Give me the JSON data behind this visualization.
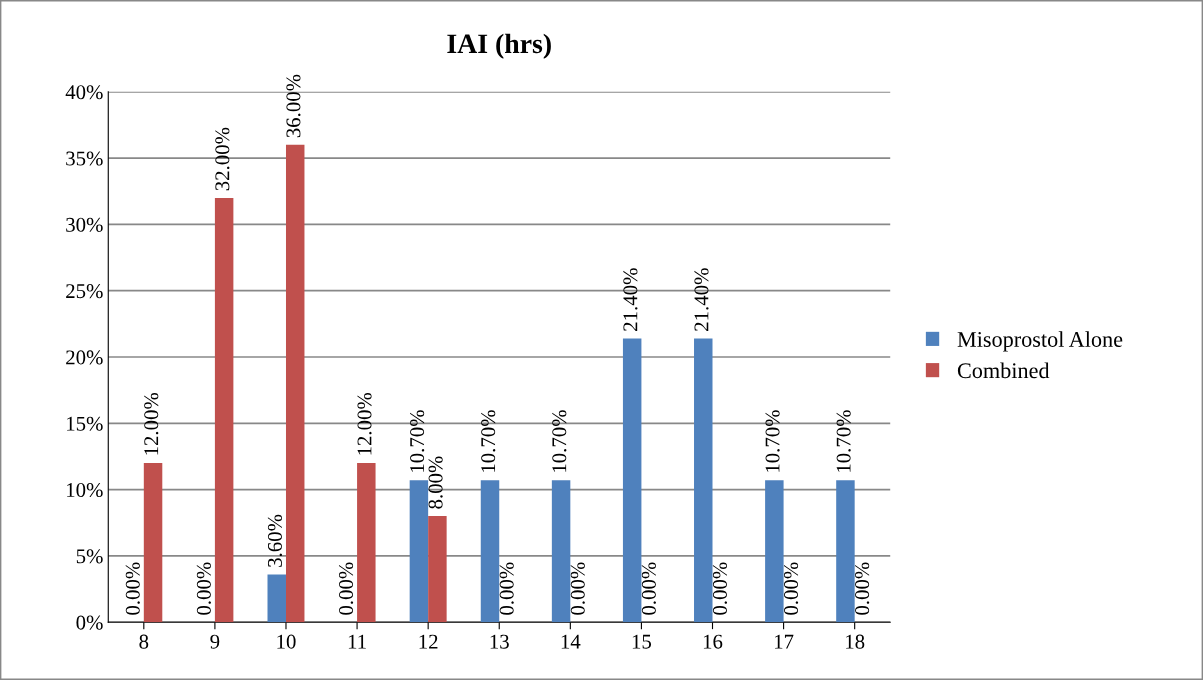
{
  "chart_data": {
    "type": "bar",
    "title": "IAI (hrs)",
    "categories": [
      "8",
      "9",
      "10",
      "11",
      "12",
      "13",
      "14",
      "15",
      "16",
      "17",
      "18"
    ],
    "series": [
      {
        "name": "Misoprostol Alone",
        "color": "#4f81bd",
        "values": [
          0,
          0,
          3.6,
          0,
          10.7,
          10.7,
          10.7,
          21.4,
          21.4,
          10.7,
          10.7
        ],
        "value_labels": [
          "0.00%",
          "0.00%",
          "3.60%",
          "0.00%",
          "10.70%",
          "10.70%",
          "10.70%",
          "21.40%",
          "21.40%",
          "10.70%",
          "10.70%"
        ]
      },
      {
        "name": "Combined",
        "color": "#c0504d",
        "values": [
          12,
          32,
          36,
          12,
          8,
          0,
          0,
          0,
          0,
          0,
          0
        ],
        "value_labels": [
          "12.00%",
          "32.00%",
          "36.00%",
          "12.00%",
          "8.00%",
          "0.00%",
          "0.00%",
          "0.00%",
          "0.00%",
          "0.00%",
          "0.00%"
        ]
      }
    ],
    "ylim": [
      0,
      40
    ],
    "yticks": [
      {
        "value": 0,
        "label": "0%"
      },
      {
        "value": 5,
        "label": "5%"
      },
      {
        "value": 10,
        "label": "10%"
      },
      {
        "value": 15,
        "label": "15%"
      },
      {
        "value": 20,
        "label": "20%"
      },
      {
        "value": 25,
        "label": "25%"
      },
      {
        "value": 30,
        "label": "30%"
      },
      {
        "value": 35,
        "label": "35%"
      },
      {
        "value": 40,
        "label": "40%"
      }
    ],
    "grid": "y",
    "legend": "right"
  }
}
